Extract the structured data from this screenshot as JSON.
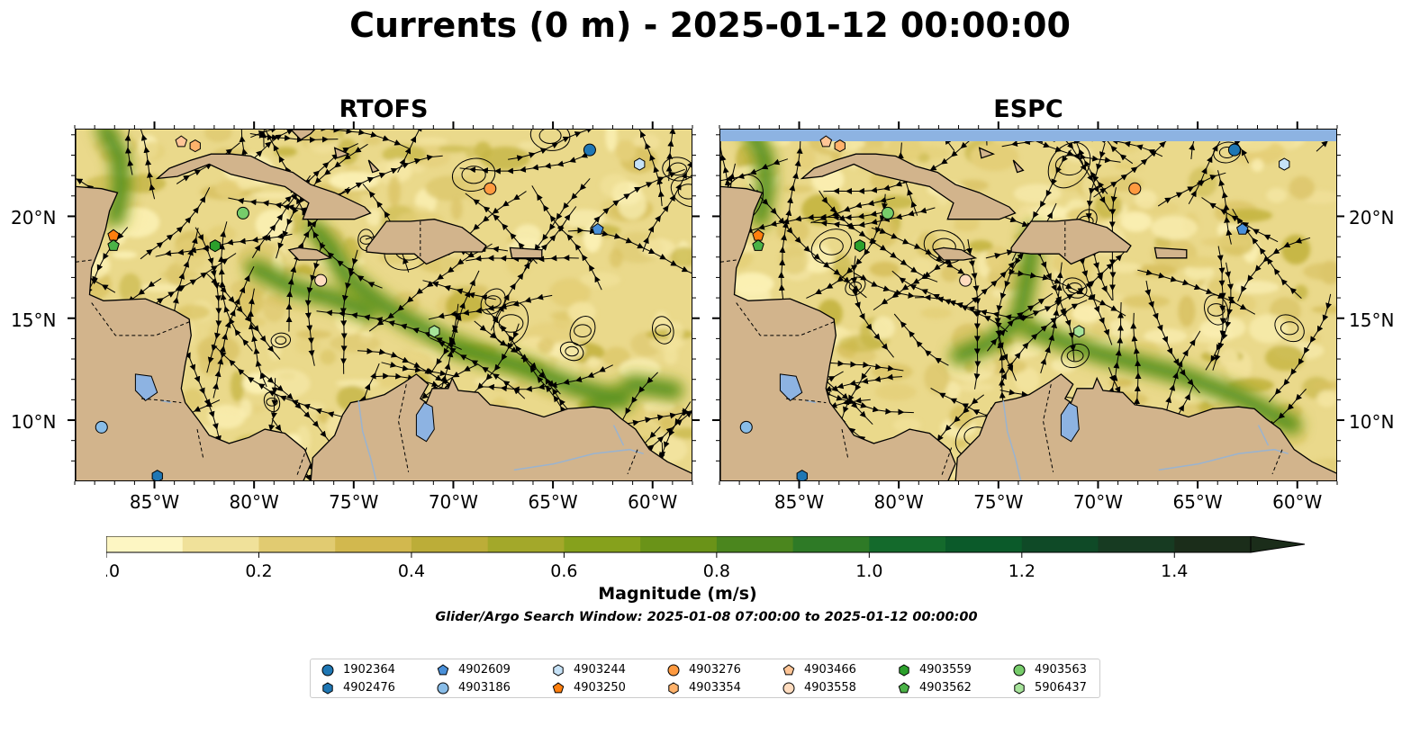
{
  "title": "Currents (0 m) - 2025-01-12 00:00:00",
  "panels": [
    {
      "title": "RTOFS",
      "lat_labels_left": [
        "20°N",
        "15°N",
        "10°N"
      ]
    },
    {
      "title": "ESPC",
      "lat_labels_right": [
        "20°N",
        "15°N",
        "10°N"
      ]
    }
  ],
  "lon_labels": [
    "85°W",
    "80°W",
    "75°W",
    "70°W",
    "65°W",
    "60°W"
  ],
  "colorbar": {
    "ticks": [
      "0.0",
      "0.2",
      "0.4",
      "0.6",
      "0.8",
      "1.0",
      "1.2",
      "1.4"
    ],
    "label": "Magnitude (m/s)",
    "colors": [
      "#fdf6c3",
      "#f0e19a",
      "#e1cb71",
      "#d2b84e",
      "#bcad38",
      "#a3a82a",
      "#86a11c",
      "#6a9318",
      "#4b861e",
      "#2e7a26",
      "#146a2c",
      "#0b5a2a",
      "#0f4a27",
      "#173b22",
      "#1b2d1a"
    ],
    "extend": "max"
  },
  "search_window": "Glider/Argo Search Window: 2025-01-08 07:00:00 to 2025-01-12 00:00:00",
  "map_extent": {
    "lon": [
      -89,
      -58
    ],
    "lat": [
      7,
      24.3
    ]
  },
  "colors": {
    "land": "#d2b48c",
    "ocean_fill": "#e8d98a",
    "lake": "#8db3e2",
    "river": "#9ab3cf"
  },
  "legend": [
    {
      "id": "1902364",
      "marker": "circle",
      "color": "#1f77b4"
    },
    {
      "id": "4902476",
      "marker": "hexagon",
      "color": "#1f77b4"
    },
    {
      "id": "4902609",
      "marker": "pentagon",
      "color": "#4a90d9"
    },
    {
      "id": "4903186",
      "marker": "circle",
      "color": "#89bde8"
    },
    {
      "id": "4903244",
      "marker": "hexagon",
      "color": "#c6e2f7"
    },
    {
      "id": "4903250",
      "marker": "pentagon",
      "color": "#ff7f0e"
    },
    {
      "id": "4903276",
      "marker": "circle",
      "color": "#ff9a40"
    },
    {
      "id": "4903354",
      "marker": "hexagon",
      "color": "#ffb26b"
    },
    {
      "id": "4903466",
      "marker": "pentagon",
      "color": "#ffc596"
    },
    {
      "id": "4903558",
      "marker": "circle",
      "color": "#ffdcbf"
    },
    {
      "id": "4903559",
      "marker": "hexagon",
      "color": "#2ca02c"
    },
    {
      "id": "4903562",
      "marker": "pentagon",
      "color": "#4bb347"
    },
    {
      "id": "4903563",
      "marker": "circle",
      "color": "#76cc6a"
    },
    {
      "id": "5906437",
      "marker": "hexagon",
      "color": "#a6e39a"
    }
  ],
  "floats": [
    {
      "id": "1902364",
      "lon": -63.2,
      "lat": 23.3
    },
    {
      "id": "4902609",
      "lon": -62.8,
      "lat": 19.4
    },
    {
      "id": "4903244",
      "lon": -60.7,
      "lat": 22.6
    },
    {
      "id": "4903276",
      "lon": -68.2,
      "lat": 21.4
    },
    {
      "id": "4903466",
      "lon": -83.7,
      "lat": 23.7
    },
    {
      "id": "4903354",
      "lon": -83.0,
      "lat": 23.5
    },
    {
      "id": "4903563",
      "lon": -80.6,
      "lat": 20.2
    },
    {
      "id": "4903559",
      "lon": -82.0,
      "lat": 18.6
    },
    {
      "id": "4903250",
      "lon": -87.1,
      "lat": 19.1
    },
    {
      "id": "4903562",
      "lon": -87.1,
      "lat": 18.6
    },
    {
      "id": "4903558",
      "lon": -76.7,
      "lat": 16.9
    },
    {
      "id": "5906437",
      "lon": -71.0,
      "lat": 14.4
    },
    {
      "id": "4903186",
      "lon": -87.7,
      "lat": 9.7
    },
    {
      "id": "4902476",
      "lon": -84.9,
      "lat": 7.3
    }
  ]
}
